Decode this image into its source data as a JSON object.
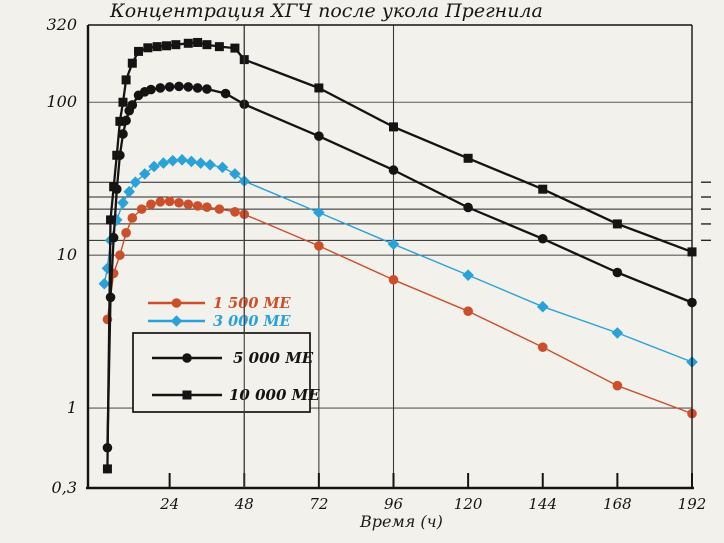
{
  "chart_data": {
    "type": "line",
    "title": "Концентрация ХГЧ после укола Прегнила",
    "xlabel": "Время (ч)",
    "y_scale": "log",
    "xlim": [
      0,
      192
    ],
    "ylim": [
      0.3,
      320
    ],
    "x_ticks": [
      24,
      48,
      72,
      96,
      120,
      144,
      168,
      192
    ],
    "y_ticks": [
      {
        "value": 320,
        "label": "320"
      },
      {
        "value": 100,
        "label": "100"
      },
      {
        "value": 10,
        "label": "10"
      },
      {
        "value": 1,
        "label": "1"
      },
      {
        "value": 0.3,
        "label": "0,3"
      }
    ],
    "grid": {
      "vertical_lines_at_hours": [
        48,
        72,
        96
      ],
      "horizontal_major_lines": [
        100,
        10,
        1
      ],
      "horizontal_minor_lines": [
        30,
        24,
        20,
        16,
        12.5
      ],
      "right_edge_dashes_at": [
        30,
        24,
        20,
        16,
        12.5
      ]
    },
    "colors": {
      "paper": "#f3f1ec",
      "ink": "#151413",
      "grid_major": "#5a5a58",
      "grid_minor": "#262624",
      "orange": "#cc4f2b",
      "blue": "#2aa1d8"
    },
    "legend": {
      "position": "left-middle",
      "boxed_entries": [
        "5 000 МЕ",
        "10 000 МЕ"
      ],
      "unboxed_entries": [
        "1 500 МЕ",
        "3 000 МЕ"
      ]
    },
    "series": [
      {
        "name": "1 500 МЕ",
        "color": "#cc4f2b",
        "marker": "circle",
        "line_width": 1.4,
        "points": [
          [
            4,
            3.8
          ],
          [
            6,
            7.6
          ],
          [
            8,
            10
          ],
          [
            10,
            14
          ],
          [
            12,
            17.5
          ],
          [
            15,
            20
          ],
          [
            18,
            21.5
          ],
          [
            21,
            22.3
          ],
          [
            24,
            22.5
          ],
          [
            27,
            22
          ],
          [
            30,
            21.5
          ],
          [
            33,
            21
          ],
          [
            36,
            20.6
          ],
          [
            40,
            20
          ],
          [
            45,
            19.2
          ],
          [
            48,
            18.5
          ],
          [
            72,
            11.5
          ],
          [
            96,
            6.9
          ],
          [
            120,
            4.3
          ],
          [
            144,
            2.5
          ],
          [
            168,
            1.4
          ],
          [
            192,
            0.92
          ]
        ]
      },
      {
        "name": "3 000 МЕ",
        "color": "#2aa1d8",
        "marker": "diamond",
        "line_width": 1.4,
        "points": [
          [
            3,
            6.5
          ],
          [
            4,
            8.2
          ],
          [
            5,
            12.5
          ],
          [
            7,
            17
          ],
          [
            9,
            22
          ],
          [
            11,
            26
          ],
          [
            13,
            30
          ],
          [
            16,
            34
          ],
          [
            19,
            38
          ],
          [
            22,
            40
          ],
          [
            25,
            41.5
          ],
          [
            28,
            42
          ],
          [
            31,
            41
          ],
          [
            34,
            40
          ],
          [
            37,
            39
          ],
          [
            41,
            37.5
          ],
          [
            45,
            34
          ],
          [
            48,
            30.5
          ],
          [
            72,
            19
          ],
          [
            96,
            11.8
          ],
          [
            120,
            7.4
          ],
          [
            144,
            4.6
          ],
          [
            168,
            3.1
          ],
          [
            192,
            2.0
          ]
        ]
      },
      {
        "name": "5 000 МЕ",
        "color": "#151413",
        "marker": "circle",
        "line_width": 2.3,
        "points": [
          [
            4,
            0.55
          ],
          [
            5,
            5.3
          ],
          [
            6,
            13
          ],
          [
            7,
            27
          ],
          [
            8,
            45
          ],
          [
            9,
            62
          ],
          [
            10,
            76
          ],
          [
            11,
            88
          ],
          [
            12,
            96
          ],
          [
            14,
            111
          ],
          [
            16,
            117
          ],
          [
            18,
            121
          ],
          [
            21,
            124
          ],
          [
            24,
            126
          ],
          [
            27,
            127
          ],
          [
            30,
            126
          ],
          [
            33,
            124
          ],
          [
            36,
            122
          ],
          [
            42,
            114
          ],
          [
            48,
            97
          ],
          [
            72,
            60
          ],
          [
            96,
            36
          ],
          [
            120,
            20.5
          ],
          [
            144,
            12.8
          ],
          [
            168,
            7.7
          ],
          [
            192,
            4.9
          ]
        ]
      },
      {
        "name": "10 000 МЕ",
        "color": "#151413",
        "marker": "square",
        "line_width": 2.3,
        "points": [
          [
            4,
            0.4
          ],
          [
            5,
            17
          ],
          [
            6,
            28
          ],
          [
            7,
            45
          ],
          [
            8,
            75
          ],
          [
            9,
            100
          ],
          [
            10,
            140
          ],
          [
            12,
            180
          ],
          [
            14,
            215
          ],
          [
            17,
            227
          ],
          [
            20,
            231
          ],
          [
            23,
            234
          ],
          [
            26,
            238
          ],
          [
            30,
            243
          ],
          [
            33,
            246
          ],
          [
            36,
            238
          ],
          [
            40,
            231
          ],
          [
            45,
            226
          ],
          [
            48,
            190
          ],
          [
            72,
            124
          ],
          [
            96,
            69
          ],
          [
            120,
            43
          ],
          [
            144,
            27
          ],
          [
            168,
            16
          ],
          [
            192,
            10.5
          ]
        ]
      }
    ]
  }
}
